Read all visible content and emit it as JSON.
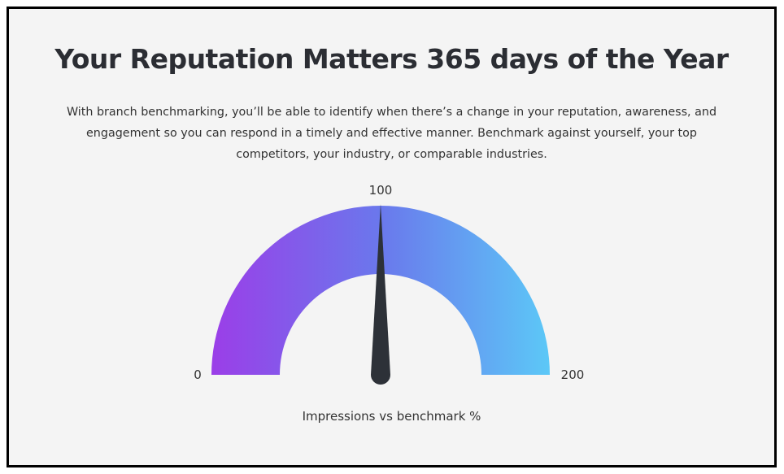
{
  "title": "Your Reputation Matters 365 days of the Year",
  "description": "With branch benchmarking, you’ll be able to identify when there’s a change in your reputation, awareness, and engagement so you can respond in a timely and effective manner. Benchmark against yourself, your top competitors, your industry, or comparable industries.",
  "gauge": {
    "min_label": "0",
    "mid_label": "100",
    "max_label": "200",
    "min": 0,
    "max": 200,
    "value": 100,
    "caption": "Impressions vs benchmark %",
    "colors": {
      "start": "#9b3ee8",
      "mid": "#6a78ec",
      "end": "#5cc8f7",
      "needle": "#2d3138"
    }
  }
}
